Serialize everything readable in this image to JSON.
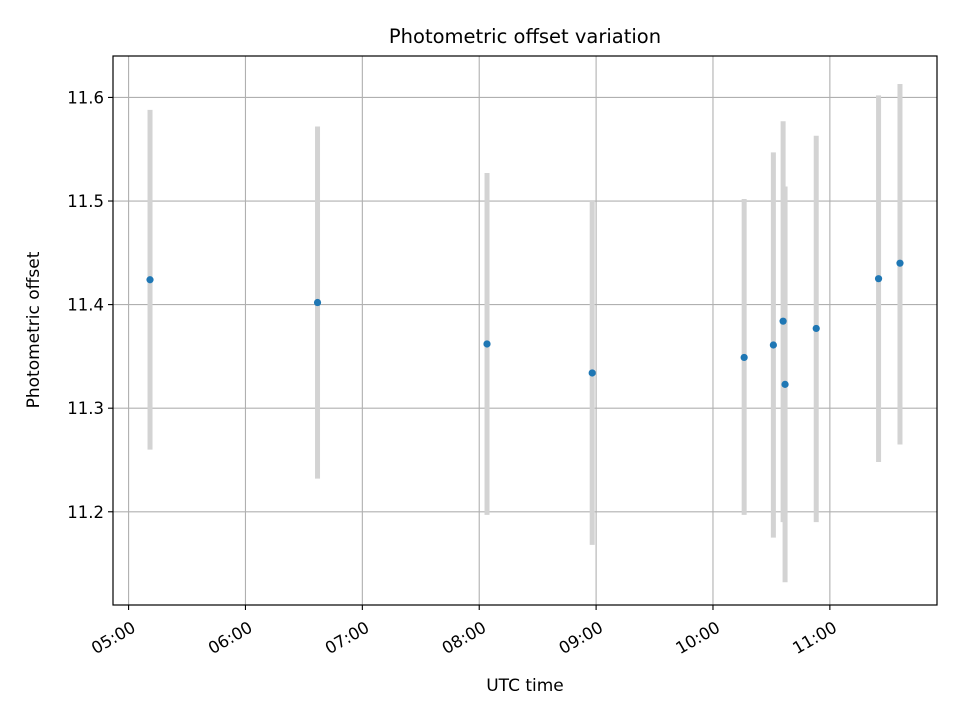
{
  "chart_data": {
    "type": "scatter",
    "title": "Photometric offset variation",
    "xlabel": "UTC time",
    "ylabel": "Photometric offset",
    "x_axis_type": "time",
    "xlim": [
      "04:52",
      "11:55"
    ],
    "ylim": [
      11.11,
      11.64
    ],
    "xticks": [
      "05:00",
      "06:00",
      "07:00",
      "08:00",
      "09:00",
      "10:00",
      "11:00"
    ],
    "yticks": [
      "11.2",
      "11.3",
      "11.4",
      "11.5",
      "11.6"
    ],
    "grid": true,
    "legend": "none",
    "colors": {
      "point": "#1f77b4",
      "errorbar": "#d3d3d3",
      "grid": "#b0b0b0"
    },
    "points": [
      {
        "x": "05:11",
        "y": 11.424,
        "y_low": 11.26,
        "y_high": 11.588
      },
      {
        "x": "06:37",
        "y": 11.402,
        "y_low": 11.232,
        "y_high": 11.572
      },
      {
        "x": "08:04",
        "y": 11.362,
        "y_low": 11.197,
        "y_high": 11.527
      },
      {
        "x": "08:58",
        "y": 11.334,
        "y_low": 11.168,
        "y_high": 11.5
      },
      {
        "x": "10:16",
        "y": 11.349,
        "y_low": 11.197,
        "y_high": 11.502
      },
      {
        "x": "10:31",
        "y": 11.361,
        "y_low": 11.175,
        "y_high": 11.547
      },
      {
        "x": "10:36",
        "y": 11.384,
        "y_low": 11.19,
        "y_high": 11.577
      },
      {
        "x": "10:37",
        "y": 11.323,
        "y_low": 11.132,
        "y_high": 11.514
      },
      {
        "x": "10:53",
        "y": 11.377,
        "y_low": 11.19,
        "y_high": 11.563
      },
      {
        "x": "11:25",
        "y": 11.425,
        "y_low": 11.248,
        "y_high": 11.602
      },
      {
        "x": "11:36",
        "y": 11.44,
        "y_low": 11.265,
        "y_high": 11.613
      }
    ]
  }
}
